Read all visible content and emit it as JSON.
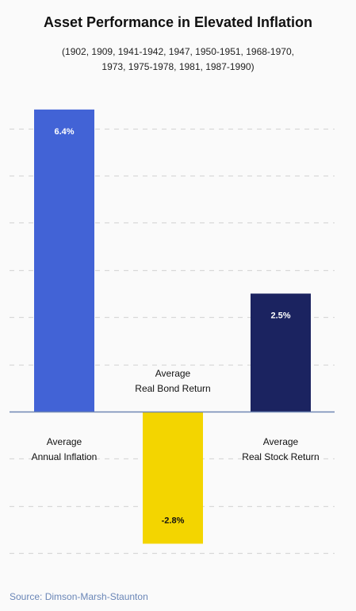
{
  "title": "Asset Performance in Elevated Inflation",
  "subtitle_lines": [
    "(1902, 1909, 1941-1942, 1947, 1950-1951, 1968-1970,",
    "1973, 1975-1978, 1981, 1987-1990)"
  ],
  "source": "Source: Dimson-Marsh-Staunton",
  "chart_data": {
    "type": "bar",
    "title": "Asset Performance in Elevated Inflation",
    "categories": [
      [
        "Average",
        "Annual Inflation"
      ],
      [
        "Average",
        "Real Bond Return"
      ],
      [
        "Average",
        "Real Stock Return"
      ]
    ],
    "values": [
      6.4,
      -2.8,
      2.5
    ],
    "value_labels": [
      "6.4%",
      "-2.8%",
      "2.5%"
    ],
    "colors": [
      "#4263d6",
      "#f3d500",
      "#1b2360"
    ],
    "value_label_colors": [
      "#ffffff",
      "#111111",
      "#ffffff"
    ],
    "grid": true,
    "ylim": [
      -3,
      6.5
    ],
    "xlabel": "",
    "ylabel": ""
  }
}
